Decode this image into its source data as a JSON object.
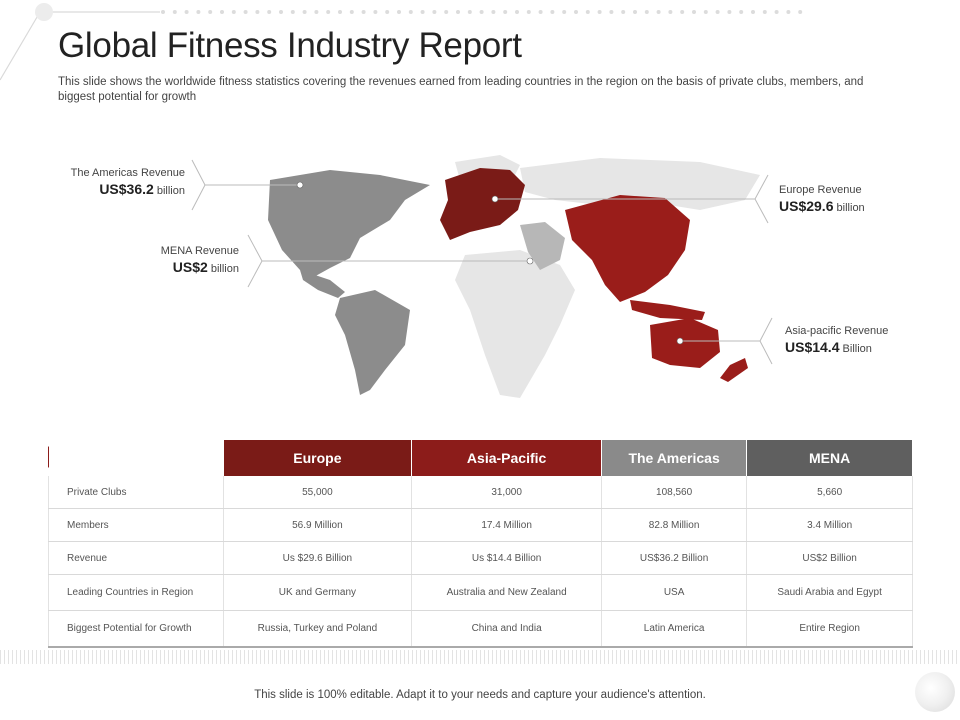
{
  "header": {
    "title": "Global Fitness Industry Report",
    "subtitle": "This slide shows the worldwide fitness statistics covering the revenues earned from leading countries in the region on the basis of  private clubs, members, and biggest potential for growth"
  },
  "map": {
    "callouts": {
      "americas": {
        "label": "The Americas Revenue",
        "value": "US$36.2",
        "unit": "billion"
      },
      "mena": {
        "label": "MENA Revenue",
        "value": "US$2",
        "unit": "billion"
      },
      "europe": {
        "label": "Europe Revenue",
        "value": "US$29.6",
        "unit": "billion"
      },
      "asia_pacific": {
        "label": "Asia-pacific Revenue",
        "value": "US$14.4",
        "unit": "Billion"
      }
    },
    "colors": {
      "europe": "#7a1b17",
      "asia_pacific": "#9a1d1a",
      "americas": "#8c8c8c",
      "mena": "#b7b7b7",
      "other": "#e6e6e6"
    }
  },
  "table": {
    "headers": [
      "Europe",
      "Asia-Pacific",
      "The Americas",
      "MENA"
    ],
    "rows": [
      {
        "label": "Private Clubs",
        "cells": [
          "55,000",
          "31,000",
          "108,560",
          "5,660"
        ]
      },
      {
        "label": "Members",
        "cells": [
          "56.9 Million",
          "17.4 Million",
          "82.8 Million",
          "3.4 Million"
        ]
      },
      {
        "label": "Revenue",
        "cells": [
          "Us $29.6 Billion",
          "Us $14.4 Billion",
          "US$36.2 Billion",
          "US$2 Billion"
        ]
      },
      {
        "label": "Leading Countries in Region",
        "cells": [
          "UK and Germany",
          "Australia and New Zealand",
          "USA",
          "Saudi Arabia and Egypt"
        ]
      },
      {
        "label": "Biggest Potential for Growth",
        "cells": [
          "Russia, Turkey and Poland",
          "China and India",
          "Latin America",
          "Entire Region"
        ]
      }
    ]
  },
  "footer": {
    "text": "This slide is 100% editable. Adapt it to your needs and capture your audience's attention."
  }
}
